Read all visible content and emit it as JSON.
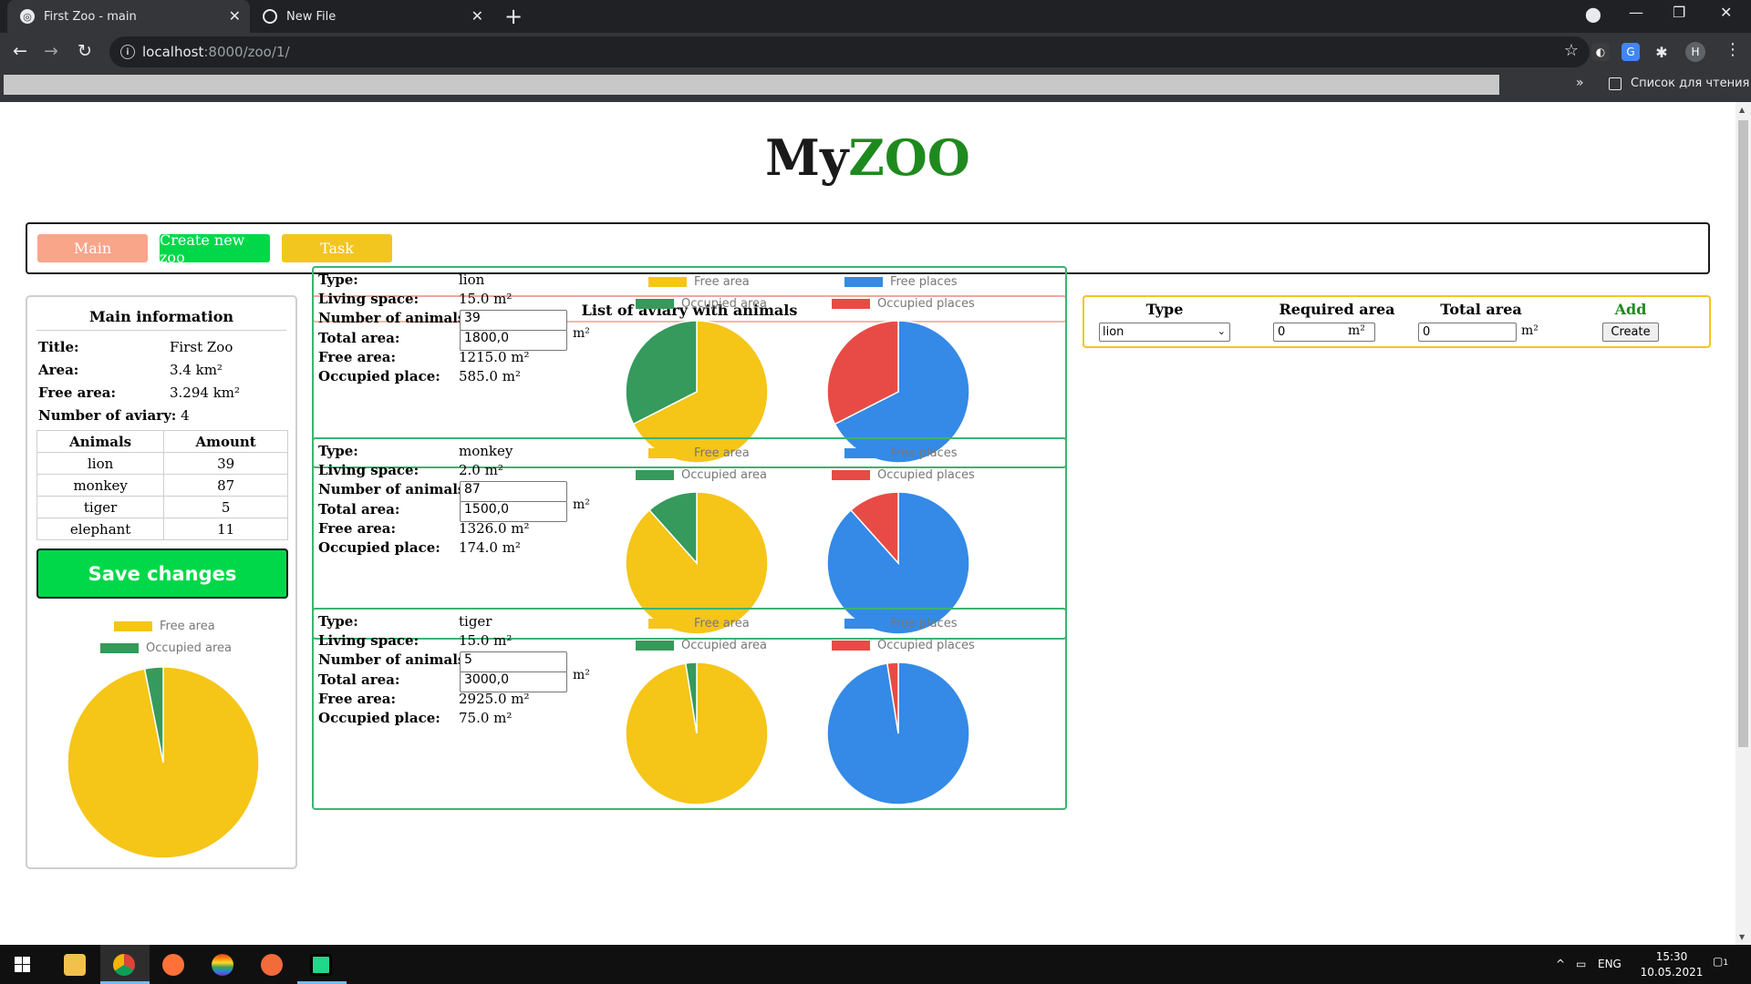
{
  "browser": {
    "tabs": [
      {
        "title": "First Zoo - main",
        "active": true
      },
      {
        "title": "New File",
        "active": false
      }
    ],
    "url_host": "localhost",
    "url_path": ":8000/zoo/1/",
    "bookmarks_more": "»",
    "reading_list": "Список для чтения",
    "profile_initial": "H"
  },
  "page": {
    "logo_black": "My",
    "logo_green": "ZOO",
    "colors": {
      "main_btn": "#f8a58a",
      "create_btn": "#00d84a",
      "task_btn": "#f3c51f",
      "free_area": "#f5c518",
      "occupied_area": "#359a5b",
      "free_places": "#348ae6",
      "occupied_places": "#e84b45"
    }
  },
  "nav": {
    "main_label": "Main",
    "create_label": "Create new zoo",
    "task_label": "Task"
  },
  "main_info": {
    "heading": "Main information",
    "title_label": "Title:",
    "title_value": "First Zoo",
    "area_label": "Area:",
    "area_value": "3.4 km²",
    "free_area_label": "Free area:",
    "free_area_value": "3.294 km²",
    "aviary_count_label": "Number of aviary:",
    "aviary_count_value": "4",
    "table_headers": [
      "Animals",
      "Amount"
    ],
    "table_rows": [
      {
        "animal": "lion",
        "amount": "39"
      },
      {
        "animal": "monkey",
        "amount": "87"
      },
      {
        "animal": "tiger",
        "amount": "5"
      },
      {
        "animal": "elephant",
        "amount": "11"
      }
    ],
    "save_label": "Save changes",
    "legend_free": "Free area",
    "legend_occupied": "Occupied area"
  },
  "aviary_list": {
    "heading": "List of aviary with animals",
    "labels": {
      "type": "Type:",
      "living": "Living space:",
      "number": "Number of animals:",
      "total": "Total area:",
      "free": "Free area:",
      "occupied": "Occupied place:"
    },
    "unit_m2": "m²",
    "legend_free_area": "Free area",
    "legend_occupied_area": "Occupied area",
    "legend_free_places": "Free places",
    "legend_occupied_places": "Occupied places",
    "items": [
      {
        "type": "lion",
        "living": "15.0 m²",
        "number": "39",
        "total": "1800,0",
        "free": "1215.0 m²",
        "occupied": "585.0 m²"
      },
      {
        "type": "monkey",
        "living": "2.0 m²",
        "number": "87",
        "total": "1500,0",
        "free": "1326.0 m²",
        "occupied": "174.0 m²"
      },
      {
        "type": "tiger",
        "living": "15.0 m²",
        "number": "5",
        "total": "3000,0",
        "free": "2925.0 m²",
        "occupied": "75.0 m²"
      }
    ]
  },
  "add_form": {
    "h_type": "Type",
    "h_required": "Required area",
    "h_total": "Total area",
    "h_add": "Add",
    "type_value": "lion",
    "required_value": "0",
    "total_value": "0",
    "unit_m2": "m²",
    "create_label": "Create"
  },
  "taskbar": {
    "lang": "ENG",
    "time": "15:30",
    "date": "10.05.2021",
    "notif_count": "1"
  },
  "chart_data": [
    {
      "type": "pie",
      "name": "zoo-area",
      "labels": [
        "Free area",
        "Occupied area"
      ],
      "values": [
        3.294,
        0.106
      ]
    },
    {
      "type": "pie",
      "name": "lion-area",
      "labels": [
        "Free area",
        "Occupied area"
      ],
      "values": [
        1215.0,
        585.0
      ]
    },
    {
      "type": "pie",
      "name": "lion-places",
      "labels": [
        "Free places",
        "Occupied places"
      ],
      "values": [
        0.675,
        0.325
      ]
    },
    {
      "type": "pie",
      "name": "monkey-area",
      "labels": [
        "Free area",
        "Occupied area"
      ],
      "values": [
        1326.0,
        174.0
      ]
    },
    {
      "type": "pie",
      "name": "monkey-places",
      "labels": [
        "Free places",
        "Occupied places"
      ],
      "values": [
        0.884,
        0.116
      ]
    },
    {
      "type": "pie",
      "name": "tiger-area",
      "labels": [
        "Free area",
        "Occupied area"
      ],
      "values": [
        2925.0,
        75.0
      ]
    },
    {
      "type": "pie",
      "name": "tiger-places",
      "labels": [
        "Free places",
        "Occupied places"
      ],
      "values": [
        0.975,
        0.025
      ]
    }
  ]
}
